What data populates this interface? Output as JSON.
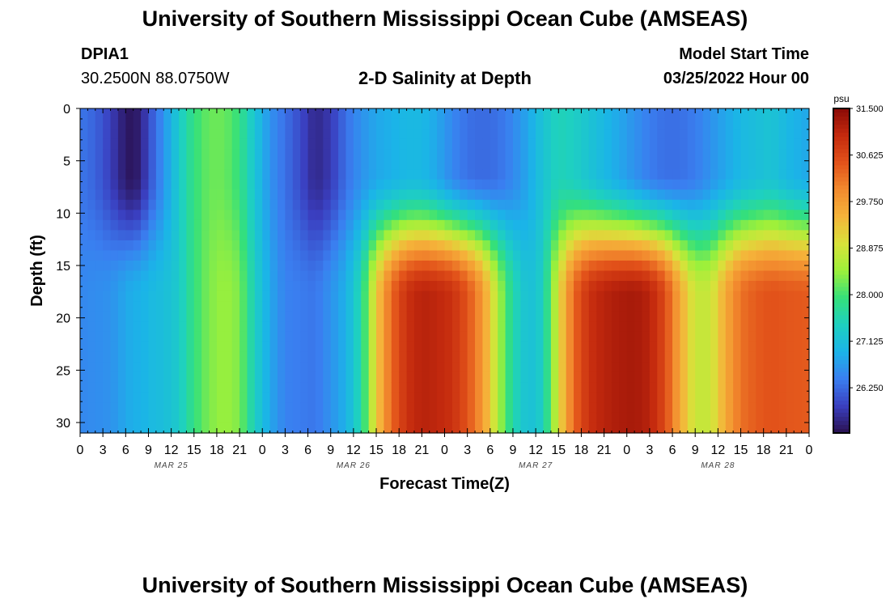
{
  "header": {
    "title": "University of Southern Mississippi Ocean Cube (AMSEAS)",
    "station_id": "DPIA1",
    "station_coords": "30.2500N  88.0750W",
    "subtitle": "2-D Salinity at Depth",
    "model_start_label": "Model Start Time",
    "model_start_value": "03/25/2022 Hour 00"
  },
  "footer": {
    "title": "University of Southern Mississippi Ocean Cube (AMSEAS)"
  },
  "chart_data": {
    "type": "heatmap",
    "title": "2-D Salinity at Depth",
    "xlabel": "Forecast Time(Z)",
    "ylabel": "Depth (ft)",
    "x_range_hours": [
      0,
      96
    ],
    "x_tick_step_hours": 3,
    "x_tick_labels": [
      "0",
      "3",
      "6",
      "9",
      "12",
      "15",
      "18",
      "21",
      "0",
      "3",
      "6",
      "9",
      "12",
      "15",
      "18",
      "21",
      "0",
      "3",
      "6",
      "9",
      "12",
      "15",
      "18",
      "21",
      "0",
      "3",
      "6",
      "9",
      "12",
      "15",
      "18",
      "21",
      "0"
    ],
    "date_labels": [
      {
        "label": "MAR 25",
        "hour": 12
      },
      {
        "label": "MAR 26",
        "hour": 36
      },
      {
        "label": "MAR 27",
        "hour": 60
      },
      {
        "label": "MAR 28",
        "hour": 84
      }
    ],
    "y_range_ft": [
      0,
      31
    ],
    "y_ticks": [
      0,
      5,
      10,
      15,
      20,
      25,
      30
    ],
    "colorbar": {
      "unit": "psu",
      "min": 25.4,
      "max": 31.5,
      "tick_values": [
        31.5,
        30.625,
        29.75,
        28.875,
        28.0,
        27.125,
        26.25
      ],
      "tick_labels": [
        "31.500",
        "30.625",
        "29.750",
        "28.875",
        "28.000",
        "27.125",
        "26.250"
      ],
      "colors": [
        "#2a1050",
        "#3a3fc0",
        "#3a7ff0",
        "#1bb4e8",
        "#1ed0c0",
        "#35e07a",
        "#9ef03a",
        "#d8e23a",
        "#f5b43a",
        "#f28a2e",
        "#e2521a",
        "#c42a0e",
        "#8a0a06"
      ]
    },
    "profiles_by_hour": [
      {
        "hour": 0,
        "surface": 26.35,
        "bottom": 26.5
      },
      {
        "hour": 2,
        "surface": 26.2,
        "bottom": 26.55
      },
      {
        "hour": 4,
        "surface": 25.9,
        "bottom": 26.6
      },
      {
        "hour": 6,
        "surface": 25.5,
        "bottom": 26.8
      },
      {
        "hour": 7,
        "surface": 25.45,
        "bottom": 26.9
      },
      {
        "hour": 8,
        "surface": 25.6,
        "bottom": 26.9
      },
      {
        "hour": 9,
        "surface": 26.0,
        "bottom": 27.0
      },
      {
        "hour": 11,
        "surface": 26.6,
        "bottom": 27.1
      },
      {
        "hour": 13,
        "surface": 27.3,
        "bottom": 27.3
      },
      {
        "hour": 15,
        "surface": 27.9,
        "bottom": 27.9
      },
      {
        "hour": 17,
        "surface": 28.2,
        "bottom": 28.3
      },
      {
        "hour": 19,
        "surface": 28.2,
        "bottom": 28.45
      },
      {
        "hour": 21,
        "surface": 27.9,
        "bottom": 28.3
      },
      {
        "hour": 23,
        "surface": 27.2,
        "bottom": 27.4
      },
      {
        "hour": 25,
        "surface": 26.6,
        "bottom": 26.8
      },
      {
        "hour": 27,
        "surface": 26.3,
        "bottom": 26.45
      },
      {
        "hour": 29,
        "surface": 26.0,
        "bottom": 26.4
      },
      {
        "hour": 31,
        "surface": 25.65,
        "bottom": 26.35
      },
      {
        "hour": 33,
        "surface": 25.85,
        "bottom": 26.6
      },
      {
        "hour": 35,
        "surface": 26.3,
        "bottom": 26.9
      },
      {
        "hour": 37,
        "surface": 26.6,
        "bottom": 27.6
      },
      {
        "hour": 39,
        "surface": 26.8,
        "bottom": 29.2
      },
      {
        "hour": 41,
        "surface": 26.9,
        "bottom": 30.3
      },
      {
        "hour": 43,
        "surface": 27.0,
        "bottom": 30.9
      },
      {
        "hour": 45,
        "surface": 27.0,
        "bottom": 31.1
      },
      {
        "hour": 47,
        "surface": 26.8,
        "bottom": 31.05
      },
      {
        "hour": 49,
        "surface": 26.5,
        "bottom": 30.9
      },
      {
        "hour": 51,
        "surface": 26.3,
        "bottom": 30.5
      },
      {
        "hour": 53,
        "surface": 26.25,
        "bottom": 29.8
      },
      {
        "hour": 55,
        "surface": 26.3,
        "bottom": 28.6
      },
      {
        "hour": 57,
        "surface": 26.5,
        "bottom": 27.6
      },
      {
        "hour": 59,
        "surface": 26.8,
        "bottom": 27.1
      },
      {
        "hour": 61,
        "surface": 27.2,
        "bottom": 27.4
      },
      {
        "hour": 63,
        "surface": 27.5,
        "bottom": 29.0
      },
      {
        "hour": 65,
        "surface": 27.4,
        "bottom": 30.3
      },
      {
        "hour": 67,
        "surface": 27.2,
        "bottom": 30.9
      },
      {
        "hour": 69,
        "surface": 27.0,
        "bottom": 31.1
      },
      {
        "hour": 71,
        "surface": 26.8,
        "bottom": 31.2
      },
      {
        "hour": 73,
        "surface": 26.6,
        "bottom": 31.25
      },
      {
        "hour": 75,
        "surface": 26.4,
        "bottom": 31.1
      },
      {
        "hour": 77,
        "surface": 26.3,
        "bottom": 30.6
      },
      {
        "hour": 79,
        "surface": 26.3,
        "bottom": 29.6
      },
      {
        "hour": 81,
        "surface": 26.4,
        "bottom": 28.8
      },
      {
        "hour": 83,
        "surface": 26.6,
        "bottom": 28.8
      },
      {
        "hour": 85,
        "surface": 26.8,
        "bottom": 29.6
      },
      {
        "hour": 87,
        "surface": 27.0,
        "bottom": 30.2
      },
      {
        "hour": 89,
        "surface": 27.1,
        "bottom": 30.4
      },
      {
        "hour": 91,
        "surface": 27.2,
        "bottom": 30.5
      },
      {
        "hour": 93,
        "surface": 27.0,
        "bottom": 30.45
      },
      {
        "hour": 96,
        "surface": 26.8,
        "bottom": 30.4
      }
    ]
  }
}
